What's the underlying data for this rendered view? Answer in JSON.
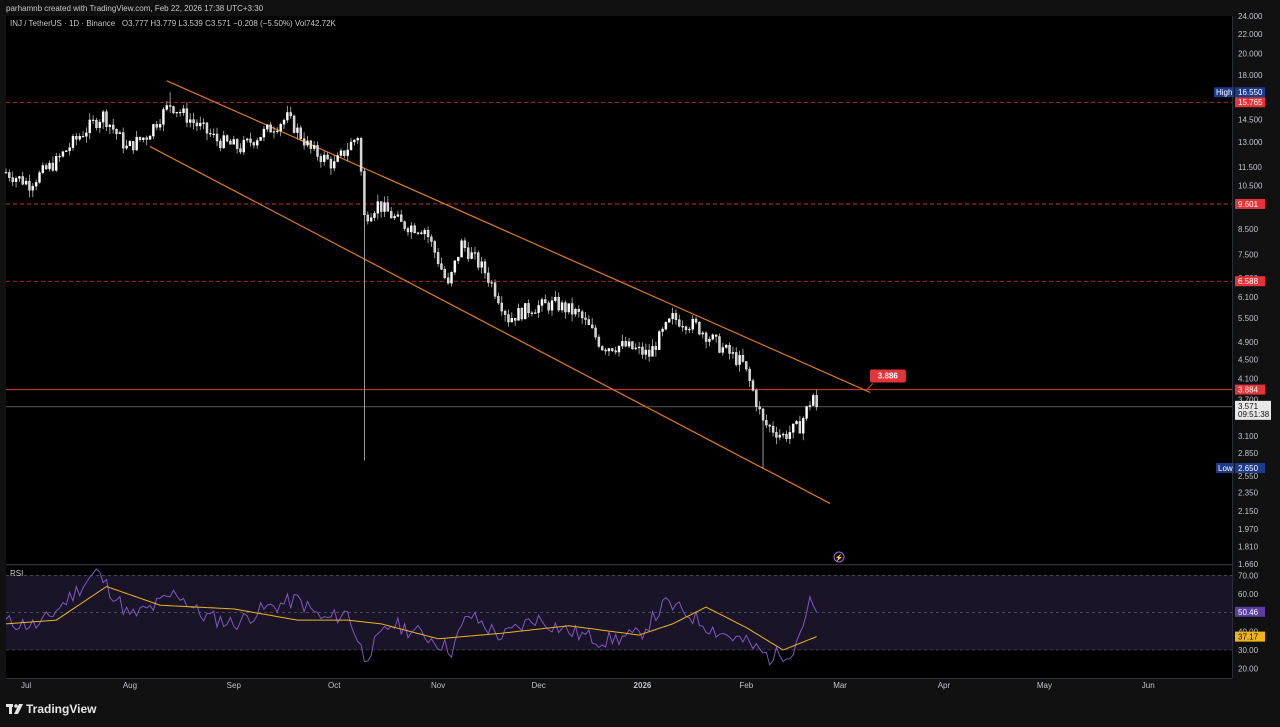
{
  "header": {
    "credit": "parhamnb created with TradingView.com, Feb 22, 2026 17:38 UTC+3:30",
    "symbol_line": "INJ / TetherUS · 1D · Binance",
    "ohlc": "O3.777  H3.779  L3.539  C3.571  −0.208 (−5.50%)  Vol742.72K"
  },
  "footer": {
    "brand": "TradingView"
  },
  "colors": {
    "bg": "#000000",
    "candle": "#ffffff",
    "channel": "#e07b18",
    "red_line": "#e2353b",
    "rsi": "#7e57c2",
    "rsi_ma": "#f0b41a",
    "rsi_fill": "#1a1429",
    "high_label": "#1e3a8a"
  },
  "chart_data": {
    "type": "candlestick",
    "price_scale": "log",
    "y_ticks": [
      "24.000",
      "22.000",
      "20.000",
      "18.000",
      "16.550",
      "15.765",
      "14.500",
      "13.000",
      "11.500",
      "10.500",
      "9.601",
      "8.500",
      "7.500",
      "6.700",
      "6.588",
      "6.100",
      "5.500",
      "4.900",
      "4.500",
      "4.100",
      "3.884",
      "3.700",
      "3.571",
      "3.100",
      "2.850",
      "2.650",
      "2.550",
      "2.350",
      "2.150",
      "1.970",
      "1.810",
      "1.660"
    ],
    "x_ticks": [
      "Jul",
      "Aug",
      "Sep",
      "Oct",
      "Nov",
      "Dec",
      "2026",
      "Feb",
      "Mar",
      "Apr",
      "May",
      "Jun"
    ],
    "x_range": [
      "2025-06-25",
      "2026-06-26"
    ],
    "y_range": [
      1.66,
      24.0
    ],
    "high": {
      "label": "High",
      "value": "16.550"
    },
    "low": {
      "label": "Low",
      "value": "2.650"
    },
    "current": {
      "price": "3.571",
      "countdown": "09:51:38"
    },
    "horizontal_levels": [
      {
        "price": 15.765,
        "label": "15.765",
        "style": "dashed"
      },
      {
        "price": 9.601,
        "label": "9.601",
        "style": "dashed"
      },
      {
        "price": 6.588,
        "label": "6.588",
        "style": "dashed"
      },
      {
        "price": 3.884,
        "label": "3.884",
        "style": "solid"
      }
    ],
    "callout": {
      "label": "3.886",
      "date": "2026-03-09",
      "price": 3.886
    },
    "channel": [
      {
        "x1": "2025-08-12",
        "y1": 17.5,
        "x2": "2026-03-10",
        "y2": 3.83
      },
      {
        "x1": "2025-08-07",
        "y1": 12.7,
        "x2": "2026-02-26",
        "y2": 2.23
      }
    ],
    "candle_keypoints": [
      [
        "2025-06-25",
        11.2
      ],
      [
        "2025-07-02",
        10.6
      ],
      [
        "2025-07-10",
        11.8
      ],
      [
        "2025-07-17",
        13.4
      ],
      [
        "2025-07-24",
        14.8
      ],
      [
        "2025-07-31",
        12.6
      ],
      [
        "2025-08-06",
        13.4
      ],
      [
        "2025-08-13",
        15.6
      ],
      [
        "2025-08-20",
        14.3
      ],
      [
        "2025-08-27",
        13.1
      ],
      [
        "2025-09-03",
        12.6
      ],
      [
        "2025-09-10",
        13.6
      ],
      [
        "2025-09-17",
        14.6
      ],
      [
        "2025-09-24",
        12.5
      ],
      [
        "2025-10-01",
        11.6
      ],
      [
        "2025-10-08",
        13.4
      ],
      [
        "2025-10-10",
        9.0
      ],
      [
        "2025-10-14",
        9.6
      ],
      [
        "2025-10-21",
        8.7
      ],
      [
        "2025-10-28",
        8.5
      ],
      [
        "2025-11-04",
        6.4
      ],
      [
        "2025-11-08",
        7.9
      ],
      [
        "2025-11-15",
        6.9
      ],
      [
        "2025-11-22",
        5.5
      ],
      [
        "2025-11-29",
        5.8
      ],
      [
        "2025-12-06",
        5.9
      ],
      [
        "2025-12-13",
        5.6
      ],
      [
        "2025-12-20",
        4.8
      ],
      [
        "2025-12-27",
        4.8
      ],
      [
        "2026-01-03",
        4.6
      ],
      [
        "2026-01-10",
        5.5
      ],
      [
        "2026-01-17",
        5.3
      ],
      [
        "2026-01-24",
        4.8
      ],
      [
        "2026-01-31",
        4.4
      ],
      [
        "2026-02-06",
        3.3
      ],
      [
        "2026-02-12",
        3.1
      ],
      [
        "2026-02-17",
        3.25
      ],
      [
        "2026-02-21",
        3.78
      ],
      [
        "2026-02-22",
        3.571
      ]
    ],
    "rsi": {
      "label": "RSI",
      "value": "50.46",
      "ma_value": "37.17",
      "y_ticks": [
        "70.00",
        "60.00",
        "50.46",
        "40.00",
        "37.17",
        "30.00",
        "20.00"
      ],
      "band": [
        30,
        70
      ],
      "mid": 50,
      "keypoints": [
        [
          "2025-06-25",
          45
        ],
        [
          "2025-07-05",
          43
        ],
        [
          "2025-07-14",
          58
        ],
        [
          "2025-07-22",
          72
        ],
        [
          "2025-08-01",
          48
        ],
        [
          "2025-08-08",
          53
        ],
        [
          "2025-08-15",
          61
        ],
        [
          "2025-08-22",
          49
        ],
        [
          "2025-09-01",
          44
        ],
        [
          "2025-09-10",
          52
        ],
        [
          "2025-09-20",
          57
        ],
        [
          "2025-09-28",
          46
        ],
        [
          "2025-10-05",
          50
        ],
        [
          "2025-10-10",
          26
        ],
        [
          "2025-10-18",
          44
        ],
        [
          "2025-10-28",
          38
        ],
        [
          "2025-11-05",
          30
        ],
        [
          "2025-11-10",
          49
        ],
        [
          "2025-11-20",
          37
        ],
        [
          "2025-11-30",
          47
        ],
        [
          "2025-12-10",
          40
        ],
        [
          "2025-12-20",
          35
        ],
        [
          "2025-12-31",
          38
        ],
        [
          "2026-01-08",
          55
        ],
        [
          "2026-01-15",
          49
        ],
        [
          "2026-01-22",
          41
        ],
        [
          "2026-02-01",
          34
        ],
        [
          "2026-02-08",
          26
        ],
        [
          "2026-02-15",
          30
        ],
        [
          "2026-02-20",
          55
        ],
        [
          "2026-02-22",
          50.46
        ]
      ],
      "ma_keypoints": [
        [
          "2025-06-25",
          44
        ],
        [
          "2025-07-10",
          46
        ],
        [
          "2025-07-25",
          64
        ],
        [
          "2025-08-10",
          54
        ],
        [
          "2025-09-01",
          52
        ],
        [
          "2025-09-20",
          46
        ],
        [
          "2025-10-05",
          46
        ],
        [
          "2025-10-15",
          44
        ],
        [
          "2025-11-01",
          36
        ],
        [
          "2025-11-20",
          39
        ],
        [
          "2025-12-10",
          43
        ],
        [
          "2025-12-31",
          38
        ],
        [
          "2026-01-10",
          44
        ],
        [
          "2026-01-20",
          53
        ],
        [
          "2026-02-01",
          42
        ],
        [
          "2026-02-12",
          30
        ],
        [
          "2026-02-22",
          37.17
        ]
      ]
    }
  }
}
